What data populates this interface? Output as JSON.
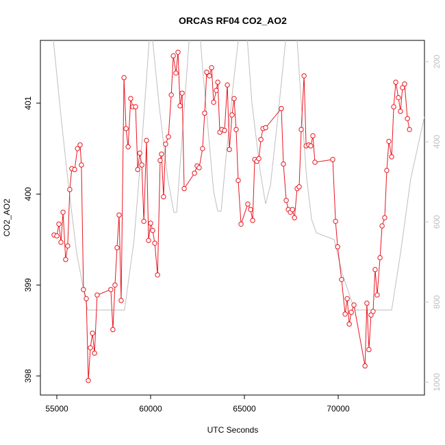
{
  "chart_data": {
    "type": "line",
    "title": "ORCAS RF04 CO2_AO2",
    "x_label": "UTC Seconds",
    "y_label": "CO2_AO2",
    "xlim": [
      54124,
      74599
    ],
    "xticks": [
      55000,
      60000,
      65000,
      70000
    ],
    "ylim": [
      397.79,
      401.69
    ],
    "yticks": [
      398,
      399,
      400,
      401
    ],
    "y2lim": [
      1032,
      147
    ],
    "y2ticks": [
      200,
      400,
      600,
      800,
      1000
    ],
    "series": [
      {
        "color": "#e8141e",
        "marker": "circle",
        "x": [
          54854,
          55000,
          55110,
          55220,
          55330,
          55470,
          55580,
          55690,
          55800,
          55950,
          56100,
          56240,
          56310,
          56420,
          56570,
          56680,
          56790,
          56900,
          57010,
          57150,
          57880,
          57990,
          58100,
          58210,
          58320,
          58430,
          58580,
          58690,
          58800,
          58940,
          59050,
          59200,
          59310,
          59420,
          59530,
          59640,
          59780,
          59890,
          60000,
          60110,
          60220,
          60370,
          60510,
          60580,
          60690,
          60800,
          60950,
          61100,
          61210,
          61350,
          61460,
          61570,
          61680,
          61790,
          62340,
          62480,
          62590,
          62770,
          62880,
          62990,
          63140,
          63250,
          63360,
          63500,
          63580,
          63690,
          63800,
          63940,
          64090,
          64200,
          64340,
          64450,
          64560,
          64670,
          64820,
          65180,
          65330,
          65440,
          65550,
          65660,
          65770,
          65880,
          65990,
          66130,
          66970,
          67080,
          67230,
          67340,
          67450,
          67560,
          67670,
          67810,
          67920,
          68030,
          68180,
          68290,
          68430,
          68540,
          68650,
          68760,
          69710,
          69860,
          69970,
          70180,
          70370,
          70480,
          70590,
          70700,
          70840,
          71430,
          71530,
          71640,
          71750,
          71860,
          71970,
          72080,
          72230,
          72340,
          72480,
          72590,
          72700,
          72850,
          72960,
          73070,
          73210,
          73320,
          73430,
          73540,
          73690,
          73800
        ],
        "values": [
          399.55,
          399.54,
          399.67,
          399.47,
          399.8,
          399.28,
          399.43,
          400.05,
          400.28,
          400.27,
          400.5,
          400.54,
          400.32,
          398.95,
          398.85,
          397.95,
          398.31,
          398.47,
          398.25,
          398.89,
          398.95,
          398.51,
          399.0,
          399.41,
          399.77,
          398.83,
          401.28,
          400.72,
          400.52,
          401.05,
          400.96,
          400.96,
          400.27,
          400.45,
          400.32,
          399.7,
          400.59,
          399.49,
          399.68,
          399.6,
          399.46,
          399.11,
          400.37,
          400.44,
          399.97,
          400.55,
          400.63,
          401.09,
          401.52,
          401.33,
          401.56,
          400.97,
          401.11,
          400.06,
          400.23,
          400.31,
          400.29,
          400.5,
          400.89,
          401.34,
          401.3,
          401.39,
          401.01,
          401.14,
          401.23,
          400.68,
          400.71,
          400.7,
          401.2,
          400.49,
          400.87,
          401.05,
          400.71,
          400.15,
          399.67,
          399.89,
          399.83,
          399.71,
          400.38,
          400.36,
          400.39,
          400.6,
          400.72,
          400.73,
          400.94,
          400.33,
          399.93,
          399.83,
          399.8,
          399.83,
          399.74,
          400.06,
          400.08,
          400.71,
          401.3,
          400.53,
          400.54,
          400.53,
          400.64,
          400.35,
          400.38,
          399.7,
          399.42,
          399.06,
          398.68,
          398.85,
          398.57,
          398.7,
          398.78,
          398.11,
          398.8,
          398.29,
          398.67,
          398.71,
          399.17,
          398.89,
          399.3,
          399.65,
          399.74,
          400.26,
          400.58,
          400.41,
          400.96,
          401.23,
          401.06,
          400.91,
          401.17,
          401.21,
          400.83,
          400.71
        ]
      },
      {
        "color": "#bebebe",
        "axis": "y2",
        "x": [
          54710,
          55260,
          55620,
          56060,
          56640,
          58610,
          59120,
          59560,
          60000,
          60440,
          60910,
          61240,
          61390,
          61680,
          62050,
          62190,
          62560,
          62770,
          63100,
          63360,
          63580,
          63760,
          64020,
          64380,
          64750,
          65110,
          65400,
          65840,
          66130,
          66390,
          66750,
          67120,
          67300,
          67740,
          68030,
          68320,
          68580,
          68830,
          69780,
          70220,
          70880,
          72850,
          73320,
          73870,
          74600
        ],
        "values": [
          97,
          354,
          508,
          679,
          820,
          820,
          644,
          388,
          97,
          303,
          491,
          576,
          576,
          388,
          149,
          80,
          80,
          217,
          388,
          525,
          573,
          573,
          439,
          268,
          115,
          115,
          303,
          473,
          555,
          508,
          354,
          183,
          97,
          97,
          303,
          491,
          593,
          627,
          644,
          730,
          820,
          820,
          679,
          491,
          337
        ]
      }
    ]
  }
}
